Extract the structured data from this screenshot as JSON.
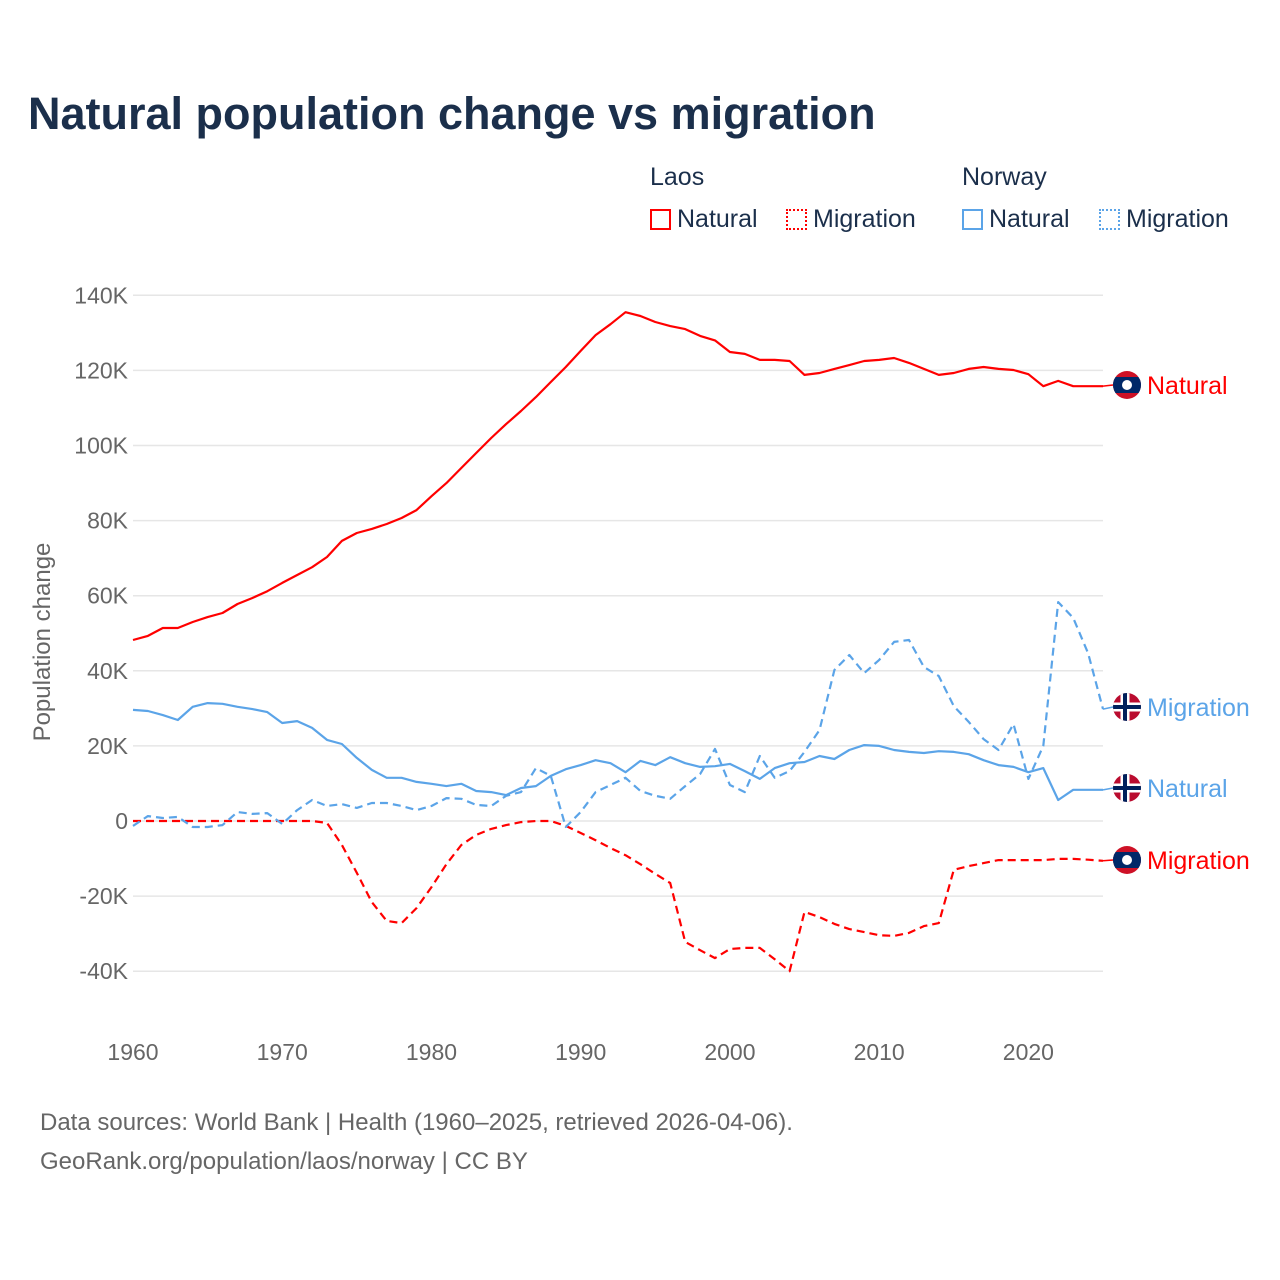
{
  "title": "Natural population change vs migration",
  "legend": {
    "groups": [
      {
        "name": "Laos",
        "items": [
          {
            "label": "Natural",
            "style": "solid"
          },
          {
            "label": "Migration",
            "style": "dotted"
          }
        ],
        "color": "#ff0000"
      },
      {
        "name": "Norway",
        "items": [
          {
            "label": "Natural",
            "style": "solid"
          },
          {
            "label": "Migration",
            "style": "dotted"
          }
        ],
        "color": "#5ba4e8"
      }
    ]
  },
  "footer": {
    "line1": "Data sources: World Bank | Health (1960–2025, retrieved 2026-04-06).",
    "line2": "GeoRank.org/population/laos/norway | CC BY"
  },
  "chart_data": {
    "type": "line",
    "title": "Natural population change vs migration",
    "xlabel": "",
    "ylabel": "Population change",
    "xlim": [
      1960,
      2025
    ],
    "ylim": [
      -50000,
      140000
    ],
    "grid": true,
    "x_ticks": [
      1960,
      1970,
      1980,
      1990,
      2000,
      2010,
      2020
    ],
    "x_tick_labels": [
      "1960",
      "1970",
      "1980",
      "1990",
      "2000",
      "2010",
      "2020"
    ],
    "y_ticks": [
      -40000,
      -20000,
      0,
      20000,
      40000,
      60000,
      80000,
      100000,
      120000,
      140000
    ],
    "y_tick_labels": [
      "-40K",
      "-20K",
      "0",
      "20K",
      "40K",
      "60K",
      "80K",
      "100K",
      "120K",
      "140K"
    ],
    "x_start": 1960,
    "series": [
      {
        "name": "Laos Natural",
        "country": "Laos",
        "end_label": "Natural",
        "color": "#ff0000",
        "dashed": false,
        "flag": "laos",
        "values": [
          48.2,
          49.3,
          51.4,
          51.4,
          53,
          54.3,
          55.4,
          57.8,
          59.4,
          61.2,
          63.4,
          65.5,
          67.6,
          70.3,
          74.6,
          76.7,
          77.8,
          79.1,
          80.7,
          82.8,
          86.5,
          90,
          94,
          98,
          102,
          105.7,
          109.2,
          112.9,
          116.9,
          120.9,
          125.2,
          129.4,
          132.3,
          135.5,
          134.5,
          132.9,
          131.8,
          131,
          129.2,
          128,
          124.9,
          124.4,
          122.8,
          122.8,
          122.5,
          118.8,
          119.3,
          120.4,
          121.4,
          122.5,
          122.8,
          123.3,
          122,
          120.4,
          118.8,
          119.3,
          120.4,
          120.9,
          120.4,
          120.1,
          119,
          115.8,
          117.2,
          115.8,
          115.8,
          115.8
        ]
      },
      {
        "name": "Laos Migration",
        "country": "Laos",
        "end_label": "Migration",
        "color": "#ff0000",
        "dashed": true,
        "flag": "laos",
        "values": [
          0,
          0,
          0,
          0,
          0,
          0,
          0,
          0,
          0,
          0,
          0,
          0,
          0,
          -0.5,
          -6.4,
          -13.8,
          -21.6,
          -26.6,
          -27.2,
          -23.2,
          -17.6,
          -11.5,
          -6.4,
          -3.7,
          -2.1,
          -1.1,
          -0.3,
          0,
          0,
          -1.3,
          -3.2,
          -5.1,
          -7.2,
          -9.1,
          -11.5,
          -14.1,
          -16.5,
          -32.2,
          -34.4,
          -36.5,
          -34.1,
          -33.8,
          -33.8,
          -36.8,
          -40,
          -24.2,
          -25.6,
          -27.4,
          -28.8,
          -29.6,
          -30.4,
          -30.6,
          -29.8,
          -28,
          -27.2,
          -13,
          -12,
          -11.2,
          -10.4,
          -10.4,
          -10.4,
          -10.4,
          -10.1,
          -10.1,
          -10.3,
          -10.6
        ]
      },
      {
        "name": "Norway Natural",
        "country": "Norway",
        "end_label": "Natural",
        "color": "#5ba4e8",
        "dashed": false,
        "flag": "norway",
        "values": [
          29.6,
          29.3,
          28.2,
          26.9,
          30.4,
          31.4,
          31.2,
          30.4,
          29.8,
          29,
          26.1,
          26.6,
          24.8,
          21.6,
          20.5,
          16.8,
          13.6,
          11.5,
          11.5,
          10.4,
          9.9,
          9.3,
          9.9,
          8,
          7.7,
          6.9,
          8.8,
          9.3,
          12,
          13.8,
          14.9,
          16.2,
          15.4,
          13,
          16,
          14.9,
          17,
          15.4,
          14.4,
          14.6,
          15.2,
          13.3,
          11.2,
          14.1,
          15.4,
          15.7,
          17.3,
          16.5,
          18.9,
          20.2,
          20,
          18.9,
          18.4,
          18.1,
          18.6,
          18.4,
          17.8,
          16.2,
          14.9,
          14.4,
          13,
          14.1,
          5.6,
          8.3,
          8.3,
          8.3
        ]
      },
      {
        "name": "Norway Migration",
        "country": "Norway",
        "end_label": "Migration",
        "color": "#5ba4e8",
        "dashed": true,
        "flag": "norway",
        "values": [
          -1.3,
          1.3,
          0.8,
          1.1,
          -1.6,
          -1.6,
          -1.1,
          2.4,
          1.9,
          2.1,
          -0.8,
          2.9,
          5.6,
          4,
          4.5,
          3.5,
          4.8,
          4.8,
          4,
          2.9,
          4,
          6.1,
          5.9,
          4.3,
          4,
          6.7,
          7.7,
          14.1,
          12,
          -1.6,
          2.4,
          7.7,
          9.6,
          11.5,
          8,
          6.7,
          5.9,
          9.3,
          12.5,
          19.2,
          9.6,
          7.7,
          17.3,
          11.5,
          13.3,
          18.4,
          24.2,
          40.2,
          44.2,
          39.4,
          42.9,
          47.7,
          48.2,
          41,
          38.6,
          30.6,
          26.4,
          21.8,
          18.9,
          25.8,
          11.2,
          20,
          58.3,
          54.1,
          44.7,
          29.8
        ]
      }
    ],
    "value_unit": "thousands"
  }
}
